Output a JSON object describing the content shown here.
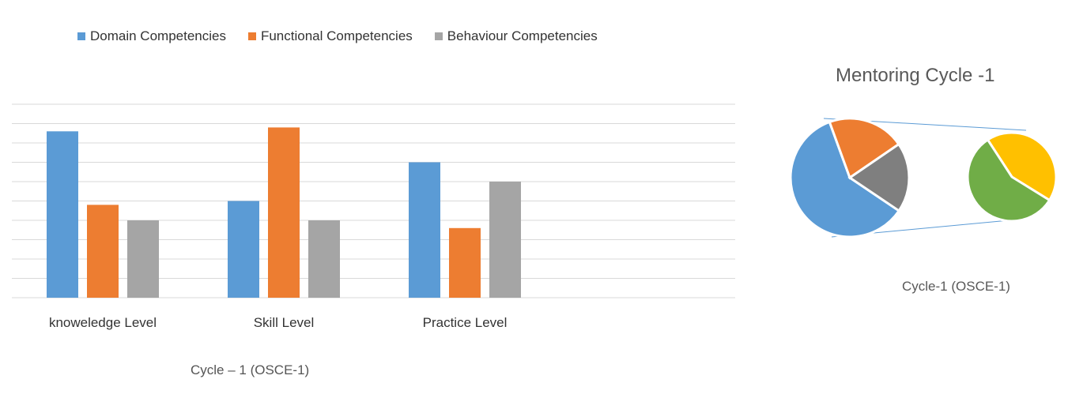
{
  "chart_data": [
    {
      "type": "bar",
      "categories": [
        "knoweledge Level",
        "Skill Level",
        "Practice Level"
      ],
      "series": [
        {
          "name": "Domain Competencies",
          "color": "#5B9BD5",
          "values": [
            8.6,
            5.0,
            7.0
          ]
        },
        {
          "name": "Functional Competencies",
          "color": "#ED7D31",
          "values": [
            4.8,
            8.8,
            3.6
          ]
        },
        {
          "name": "Behaviour Competencies",
          "color": "#A5A5A5",
          "values": [
            4.0,
            4.0,
            6.0
          ]
        }
      ],
      "ylim": [
        0,
        10
      ],
      "grid": true,
      "legend": "top-left",
      "caption": "Cycle – 1 (OSCE-1)"
    },
    {
      "type": "pie",
      "title": "Mentoring Cycle -1",
      "caption": "Cycle-1 (OSCE-1)",
      "main_pie": {
        "slices": [
          {
            "color": "#5B9BD5",
            "value": 60
          },
          {
            "color": "#ED7D31",
            "value": 21
          },
          {
            "color": "#7F7F7F",
            "value": 19
          }
        ]
      },
      "sub_pie": {
        "slices": [
          {
            "color": "#FFC000",
            "value": 43
          },
          {
            "color": "#70AD47",
            "value": 57
          }
        ]
      }
    }
  ]
}
